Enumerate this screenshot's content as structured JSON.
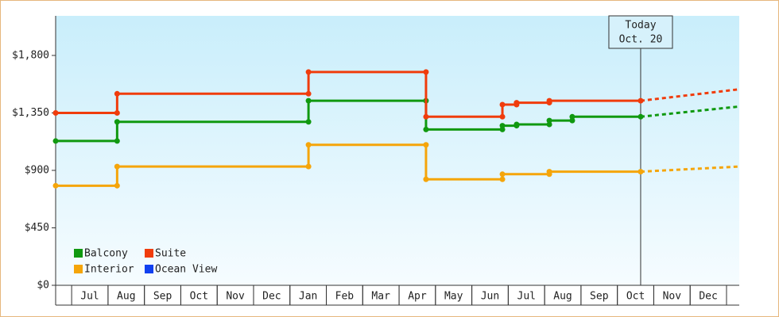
{
  "chart_data": {
    "type": "line",
    "step_points": true,
    "xlim": [
      -0.44,
      18.35
    ],
    "ylim": [
      0,
      2110
    ],
    "yticks": [
      {
        "value": 0,
        "label": "$0"
      },
      {
        "value": 450,
        "label": "$450"
      },
      {
        "value": 900,
        "label": "$900"
      },
      {
        "value": 1350,
        "label": "$1,350"
      },
      {
        "value": 1800,
        "label": "$1,800"
      }
    ],
    "xticks": [
      {
        "value": 0.5,
        "label": "Jul"
      },
      {
        "value": 1.5,
        "label": "Aug"
      },
      {
        "value": 2.5,
        "label": "Sep"
      },
      {
        "value": 3.5,
        "label": "Oct"
      },
      {
        "value": 4.5,
        "label": "Nov"
      },
      {
        "value": 5.5,
        "label": "Dec"
      },
      {
        "value": 6.5,
        "label": "Jan"
      },
      {
        "value": 7.5,
        "label": "Feb"
      },
      {
        "value": 8.5,
        "label": "Mar"
      },
      {
        "value": 9.5,
        "label": "Apr"
      },
      {
        "value": 10.5,
        "label": "May"
      },
      {
        "value": 11.5,
        "label": "Jun"
      },
      {
        "value": 12.5,
        "label": "Jul"
      },
      {
        "value": 13.5,
        "label": "Aug"
      },
      {
        "value": 14.5,
        "label": "Sep"
      },
      {
        "value": 15.5,
        "label": "Oct"
      },
      {
        "value": 16.5,
        "label": "Nov"
      },
      {
        "value": 17.5,
        "label": "Dec"
      }
    ],
    "today": {
      "x": 15.64,
      "text": [
        "Today",
        "Oct. 20"
      ]
    },
    "series": [
      {
        "name": "Balcony",
        "color": "#109910",
        "x": [
          -0.44,
          1.25,
          1.25,
          6.51,
          6.51,
          9.74,
          9.74,
          11.84,
          11.84,
          12.23,
          12.23,
          13.13,
          13.13,
          13.76,
          13.76,
          15.64
        ],
        "values": [
          1130,
          1130,
          1280,
          1280,
          1445,
          1445,
          1220,
          1220,
          1250,
          1250,
          1260,
          1260,
          1290,
          1290,
          1320,
          1320
        ],
        "forecast_x": [
          15.64,
          18.35
        ],
        "forecast_values": [
          1320,
          1400
        ]
      },
      {
        "name": "Suite",
        "color": "#f03c0c",
        "x": [
          -0.44,
          1.25,
          1.25,
          6.51,
          6.51,
          9.74,
          9.74,
          11.84,
          11.84,
          12.23,
          12.23,
          13.13,
          13.13,
          15.64
        ],
        "values": [
          1350,
          1350,
          1500,
          1500,
          1670,
          1670,
          1320,
          1320,
          1415,
          1415,
          1430,
          1430,
          1445,
          1445
        ],
        "forecast_x": [
          15.64,
          18.35
        ],
        "forecast_values": [
          1445,
          1535
        ]
      },
      {
        "name": "Interior",
        "color": "#f5a50a",
        "x": [
          -0.44,
          1.25,
          1.25,
          6.51,
          6.51,
          9.74,
          9.74,
          11.84,
          11.84,
          13.13,
          13.13,
          15.64
        ],
        "values": [
          780,
          780,
          930,
          930,
          1100,
          1100,
          830,
          830,
          870,
          870,
          890,
          890
        ],
        "forecast_x": [
          15.64,
          18.35
        ],
        "forecast_values": [
          890,
          930
        ]
      },
      {
        "name": "Ocean View",
        "color": "#1040f0",
        "x": [],
        "values": [],
        "forecast_x": [],
        "forecast_values": []
      }
    ]
  }
}
